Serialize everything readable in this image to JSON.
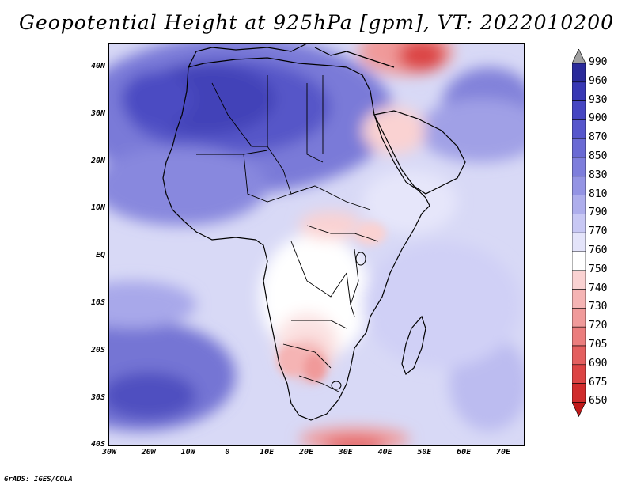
{
  "title": "Geopotential Height at 925hPa [gpm], VT: 2022010200",
  "footer": "GrADS: IGES/COLA",
  "map": {
    "lat_labels": [
      "40N",
      "30N",
      "20N",
      "10N",
      "EQ",
      "10S",
      "20S",
      "30S",
      "40S"
    ],
    "lon_labels": [
      "30W",
      "20W",
      "10W",
      "0",
      "10E",
      "20E",
      "30E",
      "40E",
      "50E",
      "60E",
      "70E"
    ]
  },
  "colorbar": {
    "levels": [
      "990",
      "960",
      "930",
      "900",
      "870",
      "850",
      "830",
      "810",
      "790",
      "770",
      "760",
      "750",
      "740",
      "730",
      "720",
      "705",
      "690",
      "675",
      "650"
    ],
    "colors": [
      "#a0a0a0",
      "#2a2a9a",
      "#3838b4",
      "#4646c2",
      "#5656cc",
      "#6a6ad4",
      "#7e7edc",
      "#9494e4",
      "#aeaeec",
      "#c8c8f4",
      "#e4e4fa",
      "#ffffff",
      "#fad2d2",
      "#f5b4b4",
      "#f09a9a",
      "#eb7d7d",
      "#e45f5f",
      "#dc4444",
      "#d02c2c",
      "#c01a1a"
    ]
  }
}
